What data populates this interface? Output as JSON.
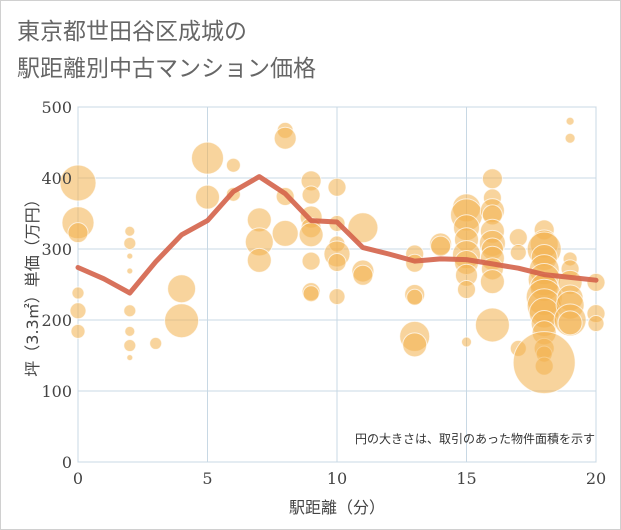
{
  "title_line1": "東京都世田谷区成城の",
  "title_line2": "駅距離別中古マンション価格",
  "chart_data": {
    "type": "scatter",
    "xlabel": "駅距離（分）",
    "ylabel": "坪（3.3㎡）単価（万円）",
    "xlim": [
      0,
      20
    ],
    "ylim": [
      0,
      500
    ],
    "xticks": [
      0,
      5,
      10,
      15,
      20
    ],
    "yticks": [
      0,
      100,
      200,
      300,
      400,
      500
    ],
    "grid": true,
    "note": "円の大きさは、取引のあった物件面積を示す",
    "colors": {
      "bubble": "#f2b04c",
      "line": "#d4634a",
      "grid": "#c8d8e4"
    },
    "line_series": {
      "x": [
        0,
        1,
        2,
        3,
        4,
        5,
        6,
        7,
        8,
        9,
        10,
        11,
        12,
        13,
        14,
        15,
        16,
        17,
        18,
        19,
        20
      ],
      "y": [
        274,
        258,
        238,
        282,
        320,
        340,
        381,
        402,
        378,
        340,
        338,
        302,
        293,
        283,
        286,
        285,
        279,
        273,
        264,
        260,
        256
      ]
    },
    "points": [
      {
        "x": 0,
        "y": 393,
        "s": 18
      },
      {
        "x": 0,
        "y": 337,
        "s": 16
      },
      {
        "x": 0,
        "y": 323,
        "s": 10
      },
      {
        "x": 0,
        "y": 238,
        "s": 6
      },
      {
        "x": 0,
        "y": 213,
        "s": 8
      },
      {
        "x": 0,
        "y": 184,
        "s": 7
      },
      {
        "x": 2,
        "y": 325,
        "s": 5
      },
      {
        "x": 2,
        "y": 308,
        "s": 6
      },
      {
        "x": 2,
        "y": 290,
        "s": 3
      },
      {
        "x": 2,
        "y": 269,
        "s": 3
      },
      {
        "x": 2,
        "y": 213,
        "s": 6
      },
      {
        "x": 2,
        "y": 184,
        "s": 5
      },
      {
        "x": 2,
        "y": 164,
        "s": 6
      },
      {
        "x": 2,
        "y": 147,
        "s": 3
      },
      {
        "x": 3,
        "y": 167,
        "s": 6
      },
      {
        "x": 4,
        "y": 244,
        "s": 14
      },
      {
        "x": 4,
        "y": 199,
        "s": 17
      },
      {
        "x": 5,
        "y": 428,
        "s": 16
      },
      {
        "x": 5,
        "y": 373,
        "s": 12
      },
      {
        "x": 6,
        "y": 418,
        "s": 7
      },
      {
        "x": 6,
        "y": 377,
        "s": 7
      },
      {
        "x": 7,
        "y": 341,
        "s": 12
      },
      {
        "x": 7,
        "y": 310,
        "s": 14
      },
      {
        "x": 7,
        "y": 284,
        "s": 12
      },
      {
        "x": 8,
        "y": 467,
        "s": 8
      },
      {
        "x": 8,
        "y": 456,
        "s": 11
      },
      {
        "x": 8,
        "y": 374,
        "s": 9
      },
      {
        "x": 8,
        "y": 322,
        "s": 13
      },
      {
        "x": 9,
        "y": 396,
        "s": 10
      },
      {
        "x": 9,
        "y": 376,
        "s": 9
      },
      {
        "x": 9,
        "y": 345,
        "s": 11
      },
      {
        "x": 9,
        "y": 330,
        "s": 10
      },
      {
        "x": 9,
        "y": 320,
        "s": 12
      },
      {
        "x": 9,
        "y": 283,
        "s": 9
      },
      {
        "x": 9,
        "y": 240,
        "s": 9
      },
      {
        "x": 9,
        "y": 237,
        "s": 8
      },
      {
        "x": 10,
        "y": 387,
        "s": 9
      },
      {
        "x": 10,
        "y": 336,
        "s": 8
      },
      {
        "x": 10,
        "y": 307,
        "s": 8
      },
      {
        "x": 10,
        "y": 293,
        "s": 13
      },
      {
        "x": 10,
        "y": 281,
        "s": 9
      },
      {
        "x": 10,
        "y": 233,
        "s": 8
      },
      {
        "x": 11,
        "y": 330,
        "s": 15
      },
      {
        "x": 11,
        "y": 269,
        "s": 11
      },
      {
        "x": 11,
        "y": 263,
        "s": 10
      },
      {
        "x": 13,
        "y": 293,
        "s": 9
      },
      {
        "x": 13,
        "y": 280,
        "s": 9
      },
      {
        "x": 13,
        "y": 236,
        "s": 10
      },
      {
        "x": 13,
        "y": 232,
        "s": 8
      },
      {
        "x": 13,
        "y": 177,
        "s": 15
      },
      {
        "x": 13,
        "y": 165,
        "s": 12
      },
      {
        "x": 14,
        "y": 307,
        "s": 11
      },
      {
        "x": 14,
        "y": 304,
        "s": 10
      },
      {
        "x": 15,
        "y": 358,
        "s": 14
      },
      {
        "x": 15,
        "y": 348,
        "s": 16
      },
      {
        "x": 15,
        "y": 330,
        "s": 13
      },
      {
        "x": 15,
        "y": 313,
        "s": 12
      },
      {
        "x": 15,
        "y": 292,
        "s": 14
      },
      {
        "x": 15,
        "y": 281,
        "s": 12
      },
      {
        "x": 15,
        "y": 263,
        "s": 11
      },
      {
        "x": 15,
        "y": 243,
        "s": 9
      },
      {
        "x": 15,
        "y": 169,
        "s": 5
      },
      {
        "x": 16,
        "y": 399,
        "s": 10
      },
      {
        "x": 16,
        "y": 372,
        "s": 9
      },
      {
        "x": 16,
        "y": 354,
        "s": 12
      },
      {
        "x": 16,
        "y": 348,
        "s": 10
      },
      {
        "x": 16,
        "y": 325,
        "s": 12
      },
      {
        "x": 16,
        "y": 308,
        "s": 13
      },
      {
        "x": 16,
        "y": 300,
        "s": 11
      },
      {
        "x": 16,
        "y": 287,
        "s": 12
      },
      {
        "x": 16,
        "y": 272,
        "s": 11
      },
      {
        "x": 16,
        "y": 254,
        "s": 12
      },
      {
        "x": 16,
        "y": 193,
        "s": 17
      },
      {
        "x": 17,
        "y": 316,
        "s": 9
      },
      {
        "x": 17,
        "y": 295,
        "s": 8
      },
      {
        "x": 17,
        "y": 160,
        "s": 8
      },
      {
        "x": 18,
        "y": 327,
        "s": 10
      },
      {
        "x": 18,
        "y": 307,
        "s": 14
      },
      {
        "x": 18,
        "y": 300,
        "s": 17
      },
      {
        "x": 18,
        "y": 288,
        "s": 13
      },
      {
        "x": 18,
        "y": 271,
        "s": 15
      },
      {
        "x": 18,
        "y": 257,
        "s": 16
      },
      {
        "x": 18,
        "y": 246,
        "s": 14
      },
      {
        "x": 18,
        "y": 232,
        "s": 18
      },
      {
        "x": 18,
        "y": 220,
        "s": 17
      },
      {
        "x": 18,
        "y": 210,
        "s": 15
      },
      {
        "x": 18,
        "y": 195,
        "s": 13
      },
      {
        "x": 18,
        "y": 182,
        "s": 12
      },
      {
        "x": 18,
        "y": 160,
        "s": 10
      },
      {
        "x": 18,
        "y": 152,
        "s": 8
      },
      {
        "x": 18,
        "y": 135,
        "s": 9
      },
      {
        "x": 18,
        "y": 140,
        "s": 31
      },
      {
        "x": 19,
        "y": 480,
        "s": 4
      },
      {
        "x": 19,
        "y": 456,
        "s": 5
      },
      {
        "x": 19,
        "y": 286,
        "s": 7
      },
      {
        "x": 19,
        "y": 272,
        "s": 9
      },
      {
        "x": 19,
        "y": 253,
        "s": 12
      },
      {
        "x": 19,
        "y": 231,
        "s": 13
      },
      {
        "x": 19,
        "y": 221,
        "s": 14
      },
      {
        "x": 19,
        "y": 200,
        "s": 16
      },
      {
        "x": 19,
        "y": 196,
        "s": 12
      },
      {
        "x": 20,
        "y": 253,
        "s": 9
      },
      {
        "x": 20,
        "y": 209,
        "s": 9
      },
      {
        "x": 20,
        "y": 195,
        "s": 8
      }
    ]
  }
}
